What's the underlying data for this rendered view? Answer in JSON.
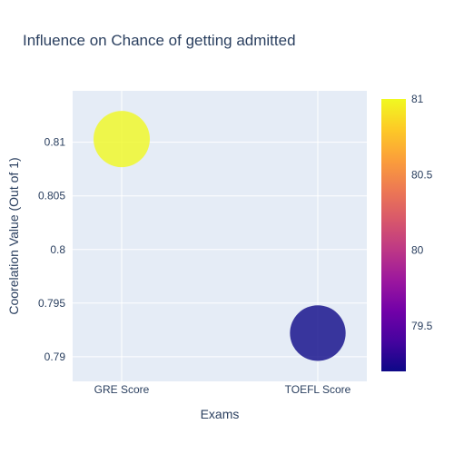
{
  "chart_data": {
    "type": "scatter",
    "title": "Influence on Chance of getting admitted",
    "xlabel": "Exams",
    "ylabel": "Coorelation Value (Out of 1)",
    "categories": [
      "GRE Score",
      "TOEFL Score"
    ],
    "values": [
      0.8103,
      0.7922
    ],
    "marker_size": [
      81,
      79.2
    ],
    "ylim": [
      0.7877,
      0.8148
    ],
    "yticks": [
      0.79,
      0.795,
      0.8,
      0.805,
      0.81
    ],
    "ytick_labels": [
      "0.79",
      "0.795",
      "0.8",
      "0.805",
      "0.81"
    ],
    "grid": true,
    "colorbar": {
      "min": 79.2,
      "max": 81,
      "ticks": [
        79.5,
        80,
        80.5,
        81
      ],
      "tick_labels": [
        "79.5",
        "80",
        "80.5",
        "81"
      ],
      "colors": [
        "#0d0887",
        "#46039f",
        "#7201a8",
        "#9c179e",
        "#bd3786",
        "#d8576b",
        "#ed7953",
        "#fb9f3a",
        "#fdca26",
        "#f0f921"
      ]
    },
    "colors": {
      "plot_bg": "#e5ecf6",
      "grid": "#ffffff",
      "text": "#2a3f5f"
    }
  }
}
